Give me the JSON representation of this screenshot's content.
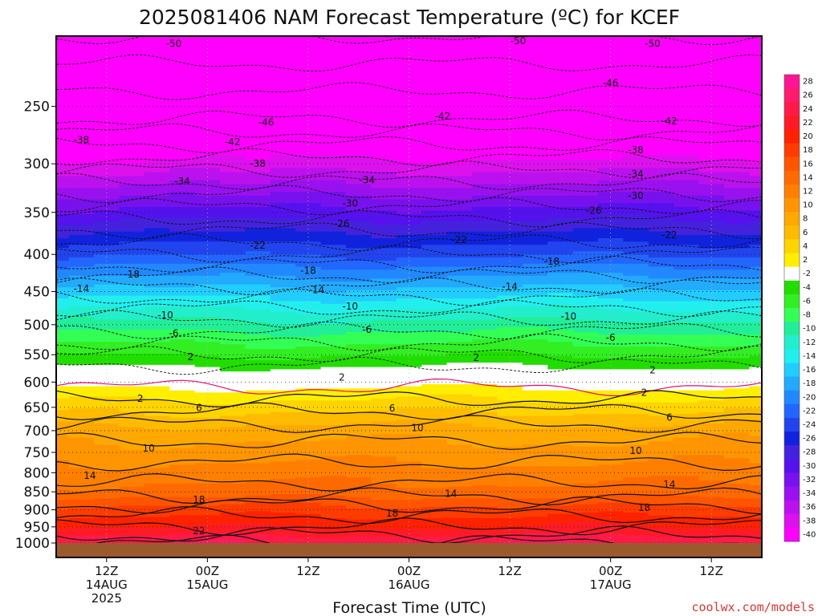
{
  "chart_data": {
    "type": "heatmap",
    "title": "2025081406 NAM Forecast Temperature (ºC) for KCEF",
    "xlabel": "Forecast Time (UTC)",
    "ylabel": "",
    "credit": "coolwx.com/models",
    "y_axis": {
      "ticks": [
        250,
        300,
        350,
        400,
        450,
        500,
        550,
        600,
        650,
        700,
        750,
        800,
        850,
        900,
        950,
        1000
      ]
    },
    "x_axis": {
      "ticks": [
        {
          "t": 12,
          "lines": [
            "12Z",
            "14AUG",
            "2025"
          ]
        },
        {
          "t": 24,
          "lines": [
            "00Z",
            "15AUG"
          ]
        },
        {
          "t": 36,
          "lines": [
            "12Z"
          ]
        },
        {
          "t": 48,
          "lines": [
            "00Z",
            "16AUG"
          ]
        },
        {
          "t": 60,
          "lines": [
            "12Z"
          ]
        },
        {
          "t": 72,
          "lines": [
            "00Z",
            "17AUG"
          ]
        },
        {
          "t": 84,
          "lines": [
            "12Z"
          ]
        }
      ],
      "range_hours": [
        6,
        90
      ]
    },
    "colorbar": {
      "ticks": [
        28,
        26,
        24,
        22,
        20,
        18,
        16,
        14,
        12,
        10,
        8,
        6,
        4,
        2,
        -2,
        -4,
        -6,
        -8,
        -10,
        -12,
        -14,
        -16,
        -18,
        -20,
        -22,
        -24,
        -26,
        -28,
        -30,
        -32,
        -34,
        -36,
        -38,
        -40
      ],
      "colors": [
        "#ff1493",
        "#ff1a6e",
        "#ff1a4a",
        "#ff1a26",
        "#ff2200",
        "#ff3c00",
        "#ff5500",
        "#ff6a00",
        "#ff7f00",
        "#ff9500",
        "#ffa800",
        "#ffbb00",
        "#ffd400",
        "#ffee00",
        "#ffffff",
        "#22dd00",
        "#33ee22",
        "#33ff55",
        "#22ee99",
        "#22eecc",
        "#22eeee",
        "#22ccff",
        "#22aaff",
        "#2288ff",
        "#2266ff",
        "#2244ee",
        "#1122dd",
        "#4422dd",
        "#5511ee",
        "#7711ee",
        "#9911ee",
        "#bb11ee",
        "#dd11ee",
        "#ff00ff"
      ]
    },
    "level_anchors": [
      {
        "p": 200,
        "T": -50
      },
      {
        "p": 260,
        "T": -44
      },
      {
        "p": 300,
        "T": -37
      },
      {
        "p": 350,
        "T": -29
      },
      {
        "p": 400,
        "T": -22
      },
      {
        "p": 450,
        "T": -15
      },
      {
        "p": 500,
        "T": -9
      },
      {
        "p": 550,
        "T": -4
      },
      {
        "p": 590,
        "T": 0
      },
      {
        "p": 620,
        "T": 3
      },
      {
        "p": 700,
        "T": 9
      },
      {
        "p": 800,
        "T": 13
      },
      {
        "p": 850,
        "T": 15
      },
      {
        "p": 900,
        "T": 19
      },
      {
        "p": 950,
        "T": 22
      },
      {
        "p": 1000,
        "T": 26
      }
    ],
    "contour_labels": [
      {
        "text": "-50",
        "t": 20,
        "p": 205
      },
      {
        "text": "-50",
        "t": 61,
        "p": 203
      },
      {
        "text": "-50",
        "t": 77,
        "p": 205
      },
      {
        "text": "-46",
        "t": 72,
        "p": 232
      },
      {
        "text": "-46",
        "t": 31,
        "p": 263
      },
      {
        "text": "-42",
        "t": 52,
        "p": 258
      },
      {
        "text": "-42",
        "t": 79,
        "p": 262
      },
      {
        "text": "-42",
        "t": 27,
        "p": 280
      },
      {
        "text": "-38",
        "t": 9,
        "p": 278
      },
      {
        "text": "-38",
        "t": 30,
        "p": 300
      },
      {
        "text": "-38",
        "t": 75,
        "p": 287
      },
      {
        "text": "-34",
        "t": 21,
        "p": 317
      },
      {
        "text": "-34",
        "t": 43,
        "p": 316
      },
      {
        "text": "-34",
        "t": 75,
        "p": 310
      },
      {
        "text": "-30",
        "t": 41,
        "p": 340
      },
      {
        "text": "-30",
        "t": 75,
        "p": 332
      },
      {
        "text": "-26",
        "t": 40,
        "p": 363
      },
      {
        "text": "-26",
        "t": 70,
        "p": 348
      },
      {
        "text": "-22",
        "t": 30,
        "p": 389
      },
      {
        "text": "-22",
        "t": 54,
        "p": 382
      },
      {
        "text": "-22",
        "t": 79,
        "p": 376
      },
      {
        "text": "-18",
        "t": 15,
        "p": 426
      },
      {
        "text": "-18",
        "t": 36,
        "p": 421
      },
      {
        "text": "-18",
        "t": 65,
        "p": 409
      },
      {
        "text": "-14",
        "t": 9,
        "p": 446
      },
      {
        "text": "-14",
        "t": 37,
        "p": 448
      },
      {
        "text": "-14",
        "t": 60,
        "p": 443
      },
      {
        "text": "-10",
        "t": 19,
        "p": 485
      },
      {
        "text": "-10",
        "t": 41,
        "p": 472
      },
      {
        "text": "-10",
        "t": 67,
        "p": 487
      },
      {
        "text": "-6",
        "t": 20,
        "p": 514
      },
      {
        "text": "-6",
        "t": 43,
        "p": 508
      },
      {
        "text": "-6",
        "t": 72,
        "p": 521
      },
      {
        "text": "2",
        "t": 22,
        "p": 554
      },
      {
        "text": "2",
        "t": 56,
        "p": 555
      },
      {
        "text": "2",
        "t": 40,
        "p": 591
      },
      {
        "text": "2",
        "t": 77,
        "p": 578
      },
      {
        "text": "2",
        "t": 16,
        "p": 632
      },
      {
        "text": "2",
        "t": 76,
        "p": 620
      },
      {
        "text": "6",
        "t": 23,
        "p": 651
      },
      {
        "text": "6",
        "t": 46,
        "p": 652
      },
      {
        "text": "6",
        "t": 79,
        "p": 671
      },
      {
        "text": "10",
        "t": 17,
        "p": 740
      },
      {
        "text": "10",
        "t": 49,
        "p": 694
      },
      {
        "text": "10",
        "t": 75,
        "p": 746
      },
      {
        "text": "14",
        "t": 10,
        "p": 807
      },
      {
        "text": "14",
        "t": 53,
        "p": 855
      },
      {
        "text": "14",
        "t": 79,
        "p": 830
      },
      {
        "text": "18",
        "t": 23,
        "p": 871
      },
      {
        "text": "18",
        "t": 46,
        "p": 910
      },
      {
        "text": "18",
        "t": 76,
        "p": 894
      },
      {
        "text": "22",
        "t": 23,
        "p": 962
      }
    ]
  }
}
